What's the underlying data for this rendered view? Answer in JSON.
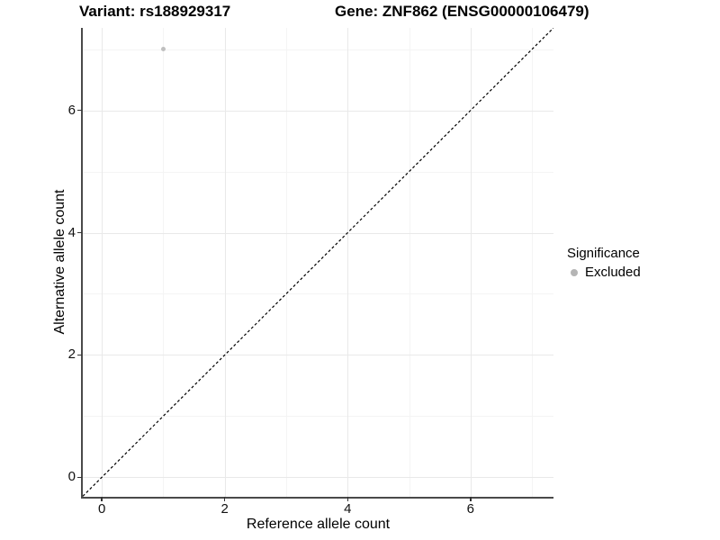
{
  "titles": {
    "variant": "Variant: rs188929317",
    "gene": "Gene: ZNF862 (ENSG00000106479)"
  },
  "axes": {
    "x_label": "Reference allele count",
    "y_label": "Alternative allele count"
  },
  "legend": {
    "title": "Significance",
    "items": [
      {
        "label": "Excluded",
        "color": "#b5b5b5"
      }
    ]
  },
  "chart_data": {
    "type": "scatter",
    "title": "Variant: rs188929317 / Gene: ZNF862 (ENSG00000106479)",
    "xlabel": "Reference allele count",
    "ylabel": "Alternative allele count",
    "xlim": [
      -0.31,
      7.35
    ],
    "ylim": [
      -0.32,
      7.35
    ],
    "x_major_ticks": [
      0,
      2,
      4,
      6
    ],
    "y_major_ticks": [
      0,
      2,
      4,
      6
    ],
    "x_minor_ticks": [
      1,
      3,
      5,
      7
    ],
    "y_minor_ticks": [
      1,
      3,
      5,
      7
    ],
    "grid": true,
    "legend_position": "right",
    "points": [
      {
        "x": 1,
        "y": 7,
        "series": "Excluded",
        "color": "#bfbfbf"
      }
    ],
    "reference_line": {
      "kind": "abline",
      "slope": 1,
      "intercept": 0,
      "style": "dashed",
      "color": "#000000"
    }
  }
}
